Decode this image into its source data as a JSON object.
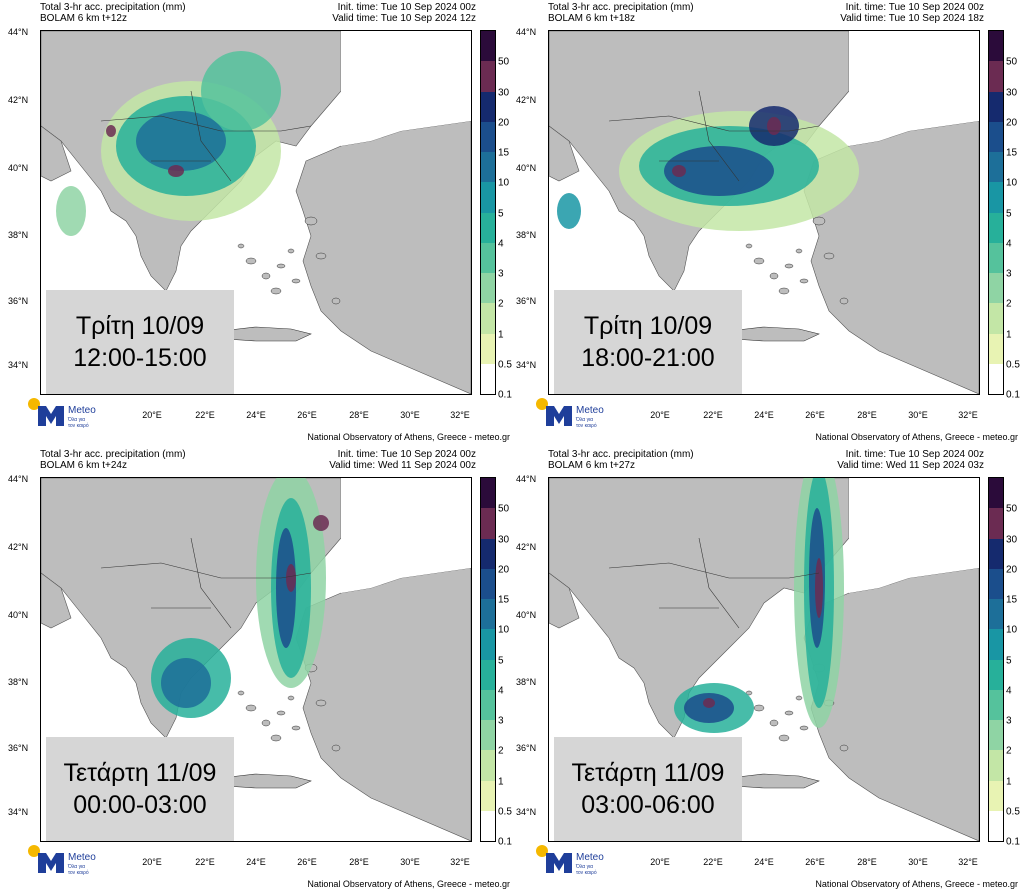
{
  "header_common": {
    "title": "Total 3-hr acc. precipitation (mm)",
    "init": "Init. time: Tue 10 Sep 2024 00z"
  },
  "footer": "National Observatory of Athens, Greece - meteo.gr",
  "logo": {
    "name": "Meteo",
    "tagline_1": "Όλα για",
    "tagline_2": "τον καιρό",
    "icon": "meteo-logo-icon"
  },
  "lat_labels": [
    "44°N",
    "42°N",
    "40°N",
    "38°N",
    "36°N",
    "34°N"
  ],
  "lon_labels": [
    "20°E",
    "22°E",
    "24°E",
    "26°E",
    "28°E",
    "30°E",
    "32°E"
  ],
  "colorbar": {
    "labels": [
      "50",
      "30",
      "20",
      "15",
      "10",
      "5",
      "4",
      "3",
      "2",
      "1",
      "0.5",
      "0.1"
    ],
    "colors": [
      "#2b0b3a",
      "#6b2b52",
      "#152a6e",
      "#1b4e8c",
      "#1d6f99",
      "#1996a4",
      "#27b09a",
      "#55c29c",
      "#8fd4a4",
      "#c3e6a6",
      "#e8f3b3",
      "#ffffff"
    ]
  },
  "panels": [
    {
      "model": "BOLAM 6 km t+12z",
      "valid": "Valid time: Tue 10 Sep 2024 12z",
      "day": "Τρίτη 10/09",
      "hours": "12:00-15:00"
    },
    {
      "model": "BOLAM 6 km t+18z",
      "valid": "Valid time: Tue 10 Sep 2024 18z",
      "day": "Τρίτη 10/09",
      "hours": "18:00-21:00"
    },
    {
      "model": "BOLAM 6 km t+24z",
      "valid": "Valid time: Wed 11 Sep 2024 00z",
      "day": "Τετάρτη 11/09",
      "hours": "00:00-03:00"
    },
    {
      "model": "BOLAM 6 km t+27z",
      "valid": "Valid time: Wed 11 Sep 2024 03z",
      "day": "Τετάρτη 11/09",
      "hours": "03:00-06:00"
    }
  ]
}
